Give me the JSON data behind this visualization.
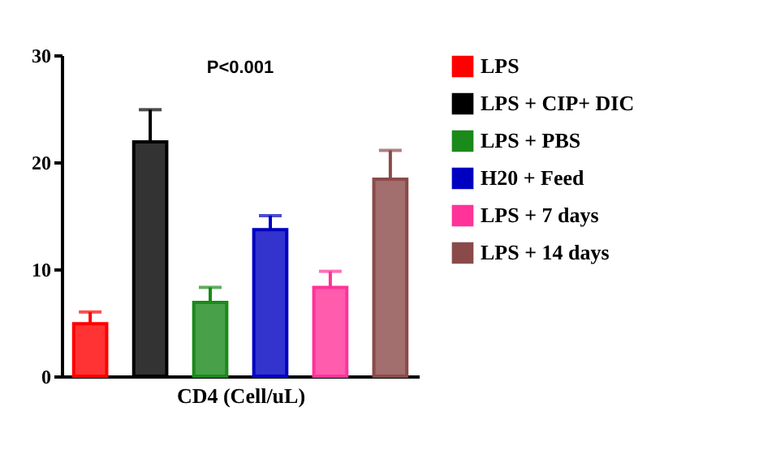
{
  "chart_data": {
    "type": "bar",
    "xlabel": "CD4 (Cell/uL)",
    "annotations": [
      "P<0.001"
    ],
    "categories": [
      null,
      null,
      null,
      null,
      null,
      null
    ],
    "series": [
      {
        "name": "LPS",
        "color": "#ff0000",
        "values": [
          4.9,
          null,
          null,
          null,
          null,
          null
        ],
        "errors": [
          [
            4.9,
            6.0
          ],
          null,
          null,
          null,
          null,
          null
        ]
      },
      {
        "name": "LPS + CIP+ DIC",
        "color": "#000000",
        "values": [
          null,
          21.9,
          null,
          null,
          null,
          null
        ],
        "errors": [
          null,
          [
            21.9,
            24.9
          ],
          null,
          null,
          null,
          null
        ]
      },
      {
        "name": "LPS + PBS",
        "color": "#1a8a1a",
        "values": [
          null,
          null,
          6.9,
          null,
          null,
          null
        ],
        "errors": [
          null,
          null,
          [
            6.9,
            8.3
          ],
          null,
          null,
          null
        ]
      },
      {
        "name": "H20 + Feed",
        "color": "#0000c0",
        "values": [
          null,
          null,
          null,
          13.7,
          null,
          null
        ],
        "errors": [
          null,
          null,
          null,
          [
            13.7,
            15.0
          ],
          null,
          null
        ]
      },
      {
        "name": "LPS + 7 days",
        "color": "#ff3399",
        "values": [
          null,
          null,
          null,
          null,
          8.3,
          null
        ],
        "errors": [
          null,
          null,
          null,
          null,
          [
            8.3,
            9.8
          ],
          null
        ]
      },
      {
        "name": "LPS + 14 days",
        "color": "#8b4a4a",
        "values": [
          null,
          null,
          null,
          null,
          null,
          18.4
        ],
        "errors": [
          null,
          null,
          null,
          null,
          null,
          [
            18.4,
            21.1
          ]
        ]
      }
    ],
    "ylim": [
      0,
      30
    ],
    "yticks": [
      0,
      10,
      20,
      30
    ],
    "grid": false,
    "legend": "right",
    "tick_labels": "y"
  }
}
